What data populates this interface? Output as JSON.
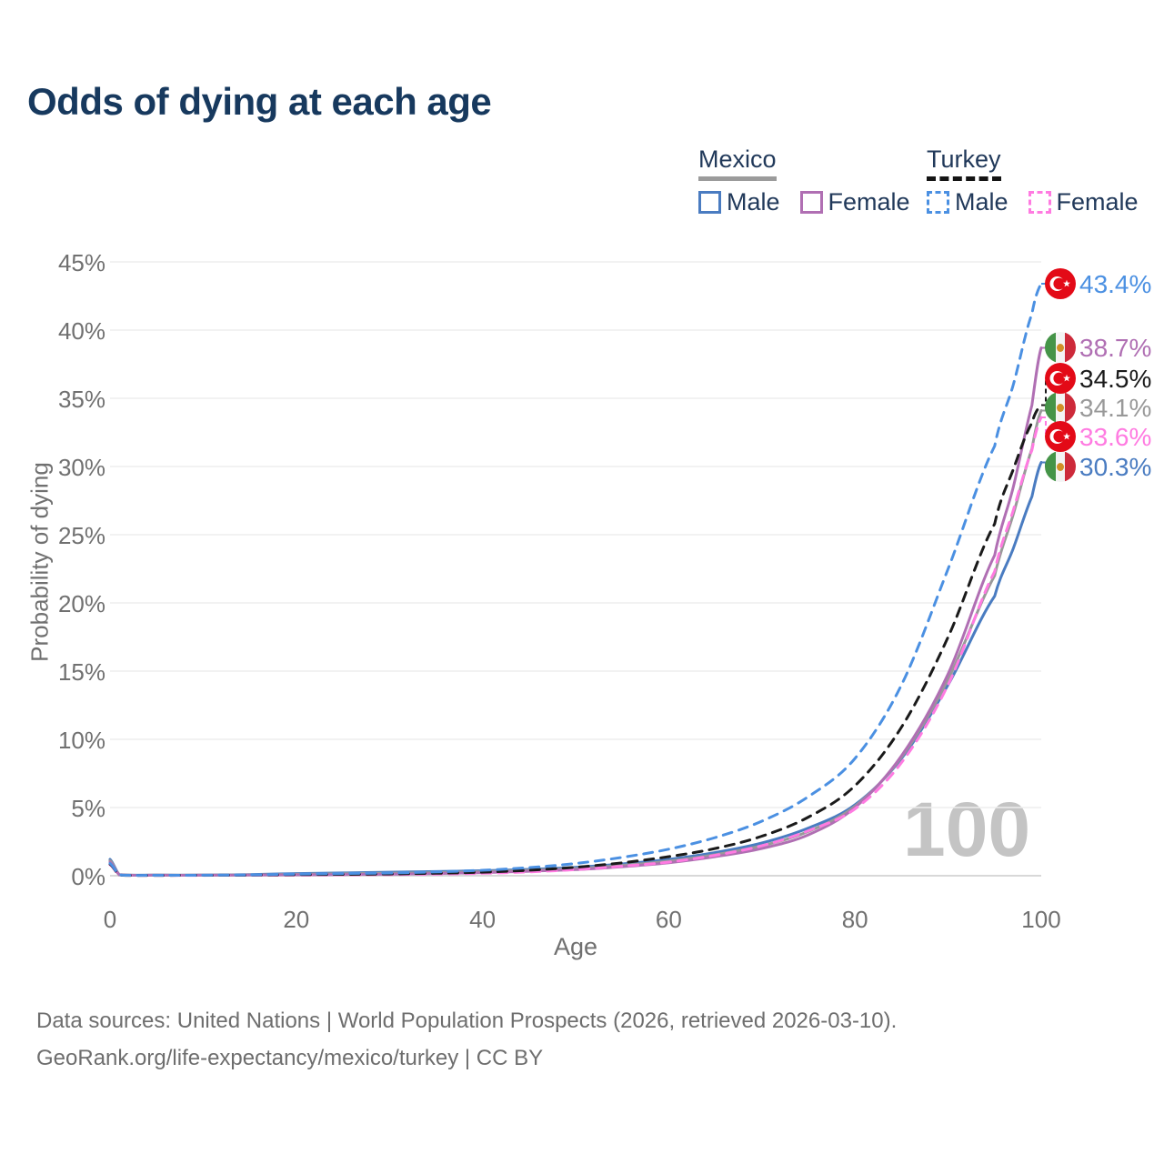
{
  "title": "Odds of dying at each age",
  "watermark": "100",
  "legend": {
    "groups": [
      {
        "label": "Mexico",
        "line_style": "solid",
        "underline_color": "#9b9b9b",
        "items": [
          {
            "label": "Male",
            "color": "#4a7cc1"
          },
          {
            "label": "Female",
            "color": "#b06fb3"
          }
        ]
      },
      {
        "label": "Turkey",
        "line_style": "dashed",
        "underline_color": "#141414",
        "items": [
          {
            "label": "Male",
            "color": "#4b90e2"
          },
          {
            "label": "Female",
            "color": "#ff7be1"
          }
        ]
      }
    ]
  },
  "footer": {
    "line1": "Data sources: United Nations | World Population Prospects (2026, retrieved 2026-03-10).",
    "line2": "GeoRank.org/life-expectancy/mexico/turkey | CC BY"
  },
  "chart_data": {
    "type": "line",
    "title": "Odds of dying at each age",
    "xlabel": "Age",
    "ylabel": "Probability of dying",
    "xlim": [
      0,
      100
    ],
    "ylim": [
      0,
      45
    ],
    "x_ticks": [
      0,
      20,
      40,
      60,
      80,
      100
    ],
    "y_ticks": [
      0,
      5,
      10,
      15,
      20,
      25,
      30,
      35,
      40,
      45
    ],
    "y_tick_suffix": "%",
    "grid": "horizontal",
    "legend_position": "top-right",
    "highlighted_age": 100,
    "x": [
      0,
      1,
      5,
      10,
      15,
      20,
      25,
      30,
      35,
      40,
      45,
      50,
      55,
      60,
      65,
      70,
      75,
      80,
      85,
      90,
      95,
      97,
      99,
      100
    ],
    "series": [
      {
        "id": "mx_male",
        "name": "Mexico Male",
        "country": "Mexico",
        "sex": "Male",
        "color": "#4a7cc1",
        "dash": false,
        "flag": "mexico",
        "end_value": 30.3,
        "end_label": "30.3%",
        "values": [
          1.2,
          0.08,
          0.05,
          0.05,
          0.09,
          0.16,
          0.21,
          0.26,
          0.31,
          0.37,
          0.47,
          0.62,
          0.87,
          1.2,
          1.7,
          2.4,
          3.5,
          5.2,
          8.6,
          14.0,
          20.5,
          24.0,
          27.8,
          30.3
        ]
      },
      {
        "id": "mx_both",
        "name": "Mexico Both sexes",
        "country": "Mexico",
        "sex": "Both",
        "color": "#999999",
        "dash": false,
        "flag": "mexico",
        "end_value": 34.1,
        "end_label": "34.1%",
        "values": [
          1.1,
          0.075,
          0.045,
          0.045,
          0.07,
          0.11,
          0.15,
          0.18,
          0.23,
          0.3,
          0.4,
          0.53,
          0.76,
          1.07,
          1.55,
          2.2,
          3.25,
          5.1,
          8.7,
          14.4,
          22.0,
          26.5,
          31.3,
          34.1
        ]
      },
      {
        "id": "mx_female",
        "name": "Mexico Female",
        "country": "Mexico",
        "sex": "Female",
        "color": "#b06fb3",
        "dash": false,
        "flag": "mexico",
        "end_value": 38.7,
        "end_label": "38.7%",
        "values": [
          1.0,
          0.07,
          0.04,
          0.04,
          0.05,
          0.07,
          0.09,
          0.11,
          0.16,
          0.23,
          0.33,
          0.45,
          0.66,
          0.95,
          1.4,
          2.0,
          3.0,
          5.0,
          8.8,
          14.8,
          23.5,
          28.5,
          34.5,
          38.7
        ]
      },
      {
        "id": "tr_female",
        "name": "Turkey Female",
        "country": "Turkey",
        "sex": "Female",
        "color": "#ff7be1",
        "dash": true,
        "flag": "turkey",
        "end_value": 33.6,
        "end_label": "33.6%",
        "values": [
          0.8,
          0.05,
          0.03,
          0.03,
          0.04,
          0.05,
          0.07,
          0.09,
          0.12,
          0.18,
          0.28,
          0.45,
          0.7,
          1.0,
          1.5,
          2.2,
          3.3,
          4.9,
          8.3,
          14.0,
          22.3,
          26.8,
          31.2,
          33.6
        ]
      },
      {
        "id": "tr_both",
        "name": "Turkey Both sexes",
        "country": "Turkey",
        "sex": "Both",
        "color": "#1a1a1a",
        "dash": true,
        "flag": "turkey",
        "end_value": 34.5,
        "end_label": "34.5%",
        "values": [
          0.85,
          0.055,
          0.03,
          0.035,
          0.05,
          0.08,
          0.1,
          0.13,
          0.18,
          0.26,
          0.4,
          0.62,
          0.95,
          1.4,
          2.0,
          2.9,
          4.3,
          6.6,
          10.9,
          17.5,
          25.8,
          29.8,
          33.2,
          34.5
        ]
      },
      {
        "id": "tr_male",
        "name": "Turkey Male",
        "country": "Turkey",
        "sex": "Male",
        "color": "#4b90e2",
        "dash": true,
        "flag": "turkey",
        "end_value": 43.4,
        "end_label": "43.4%",
        "values": [
          0.9,
          0.06,
          0.035,
          0.04,
          0.07,
          0.12,
          0.16,
          0.2,
          0.28,
          0.4,
          0.6,
          0.9,
          1.35,
          1.95,
          2.8,
          4.0,
          5.8,
          8.6,
          14.0,
          22.5,
          31.5,
          36.0,
          41.2,
          43.4
        ]
      }
    ]
  }
}
